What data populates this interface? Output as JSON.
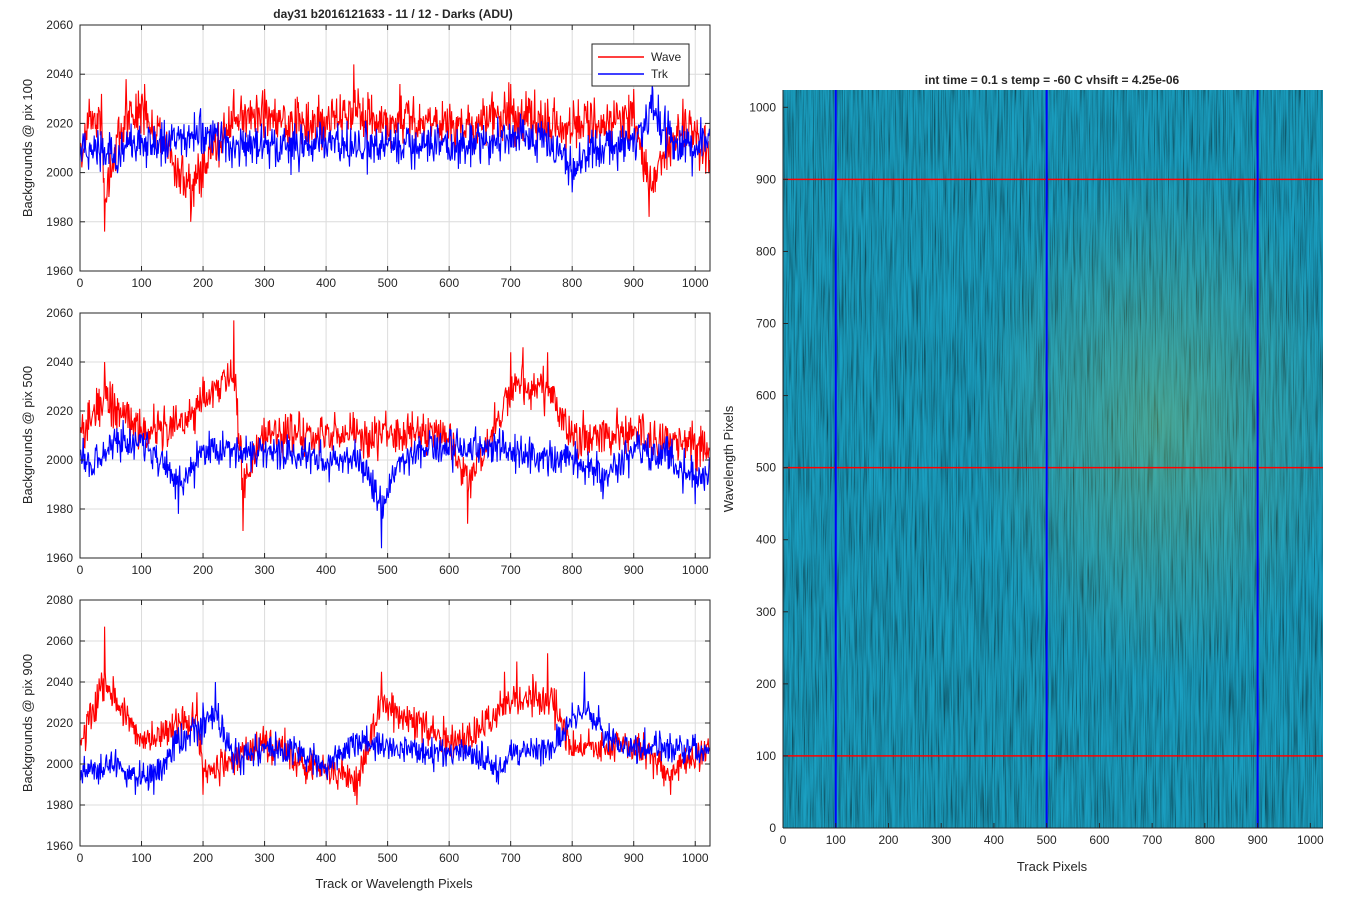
{
  "figure": {
    "title": "day31 b2016121633 - 11 / 12 - Darks (ADU)",
    "colors": {
      "wave": "#ff0000",
      "trk": "#0000ff",
      "grid": "#dcdcdc",
      "axis": "#262626"
    }
  },
  "legend": {
    "items": [
      "Wave",
      "Trk"
    ],
    "placement": "top-right of first panel"
  },
  "chart_data": [
    {
      "type": "line",
      "ylabel": "Backgrounds @ pix 100",
      "xlabel": "",
      "xlim": [
        0,
        1024
      ],
      "ylim": [
        1960,
        2060
      ],
      "xticks": [
        0,
        100,
        200,
        300,
        400,
        500,
        600,
        700,
        800,
        900,
        1000
      ],
      "yticks": [
        1960,
        1980,
        2000,
        2020,
        2040,
        2060
      ],
      "grid": true,
      "series": [
        {
          "name": "Wave",
          "color": "#ff0000",
          "mean": 2008,
          "noise": 8,
          "x": [
            0,
            15,
            35,
            40,
            75,
            105,
            180,
            250,
            300,
            350,
            410,
            445,
            470,
            520,
            620,
            700,
            760,
            820,
            900,
            925,
            980,
            1024
          ],
          "y": [
            2010,
            2030,
            2032,
            1976,
            2038,
            2036,
            1980,
            2034,
            2034,
            2030,
            2030,
            2044,
            2030,
            2036,
            2026,
            2036,
            2030,
            2028,
            2034,
            1982,
            2030,
            2010
          ]
        },
        {
          "name": "Trk",
          "color": "#0000ff",
          "mean": 2012,
          "noise": 7,
          "x": [
            0,
            30,
            60,
            100,
            150,
            200,
            240,
            300,
            350,
            400,
            450,
            500,
            560,
            600,
            640,
            680,
            720,
            780,
            800,
            850,
            900,
            930,
            960,
            1000,
            1024
          ],
          "y": [
            2005,
            2012,
            2003,
            2012,
            2013,
            2020,
            2012,
            2010,
            2010,
            2012,
            2008,
            2011,
            2010,
            2009,
            2014,
            2016,
            2016,
            2012,
            1992,
            2010,
            2014,
            2036,
            2012,
            2006,
            2015
          ]
        }
      ]
    },
    {
      "type": "line",
      "ylabel": "Backgrounds @ pix 500",
      "xlabel": "",
      "xlim": [
        0,
        1024
      ],
      "ylim": [
        1960,
        2060
      ],
      "xticks": [
        0,
        100,
        200,
        300,
        400,
        500,
        600,
        700,
        800,
        900,
        1000
      ],
      "yticks": [
        1960,
        1980,
        2000,
        2020,
        2040,
        2060
      ],
      "grid": true,
      "series": [
        {
          "name": "Wave",
          "color": "#ff0000",
          "mean": 2010,
          "noise": 7,
          "x": [
            0,
            40,
            100,
            150,
            200,
            250,
            265,
            300,
            400,
            500,
            600,
            630,
            700,
            720,
            760,
            800,
            900,
            1024
          ],
          "y": [
            2012,
            2040,
            2012,
            2016,
            2034,
            2057,
            1971,
            2010,
            2010,
            2012,
            2010,
            1974,
            2044,
            2046,
            2044,
            2010,
            2010,
            2002
          ]
        },
        {
          "name": "Trk",
          "color": "#0000ff",
          "mean": 2003,
          "noise": 6,
          "x": [
            0,
            20,
            60,
            100,
            140,
            160,
            200,
            250,
            300,
            350,
            400,
            450,
            490,
            520,
            560,
            620,
            680,
            720,
            760,
            800,
            850,
            900,
            950,
            1000,
            1024
          ],
          "y": [
            2002,
            1994,
            2013,
            2010,
            1995,
            1978,
            2004,
            2004,
            2004,
            2000,
            1996,
            2000,
            1964,
            1995,
            2004,
            2006,
            2007,
            2000,
            1996,
            2000,
            1984,
            2004,
            2004,
            1982,
            1990
          ]
        }
      ]
    },
    {
      "type": "line",
      "ylabel": "Backgrounds @ pix 900",
      "xlabel": "Track or Wavelength Pixels",
      "xlim": [
        0,
        1024
      ],
      "ylim": [
        1960,
        2080
      ],
      "xticks": [
        0,
        100,
        200,
        300,
        400,
        500,
        600,
        700,
        800,
        900,
        1000
      ],
      "yticks": [
        1960,
        1980,
        2000,
        2020,
        2040,
        2060,
        2080
      ],
      "grid": true,
      "series": [
        {
          "name": "Wave",
          "color": "#ff0000",
          "mean": 2008,
          "noise": 7,
          "x": [
            0,
            40,
            100,
            190,
            200,
            300,
            450,
            490,
            620,
            690,
            710,
            760,
            800,
            900,
            960,
            1024
          ],
          "y": [
            2010,
            2067,
            2012,
            2035,
            1985,
            2010,
            1980,
            2045,
            2010,
            2045,
            2050,
            2054,
            2006,
            2010,
            1985,
            2008
          ]
        },
        {
          "name": "Trk",
          "color": "#0000ff",
          "mean": 2005,
          "noise": 6,
          "x": [
            0,
            30,
            60,
            90,
            120,
            160,
            200,
            220,
            250,
            300,
            350,
            400,
            450,
            500,
            560,
            600,
            640,
            680,
            700,
            760,
            800,
            820,
            860,
            900,
            960,
            1024
          ],
          "y": [
            1992,
            1990,
            1996,
            1985,
            1985,
            2018,
            2030,
            2040,
            2000,
            2010,
            2010,
            1995,
            2015,
            2010,
            2005,
            2006,
            2004,
            1990,
            2004,
            2010,
            2030,
            2045,
            2020,
            2010,
            2010,
            2010
          ]
        }
      ]
    },
    {
      "type": "heatmap",
      "title": "int time = 0.1 s   temp = -60 C   vhsift = 4.25e-06",
      "xlabel": "Track Pixels",
      "ylabel": "Wavelength Pixels",
      "xlim": [
        0,
        1024
      ],
      "ylim": [
        0,
        1024
      ],
      "xticks": [
        0,
        100,
        200,
        300,
        400,
        500,
        600,
        700,
        800,
        900,
        1000
      ],
      "yticks": [
        0,
        100,
        200,
        300,
        400,
        500,
        600,
        700,
        800,
        900,
        1000
      ],
      "colormap": [
        "#1b8ecb",
        "#16a7bd",
        "#2bb69a",
        "#76be6c",
        "#bcbd45"
      ],
      "vertical_lines": {
        "x": [
          100,
          500,
          900
        ],
        "color": "#0000ff"
      },
      "horizontal_lines": {
        "y": [
          100,
          500,
          900
        ],
        "color": "#ff0000"
      }
    }
  ]
}
